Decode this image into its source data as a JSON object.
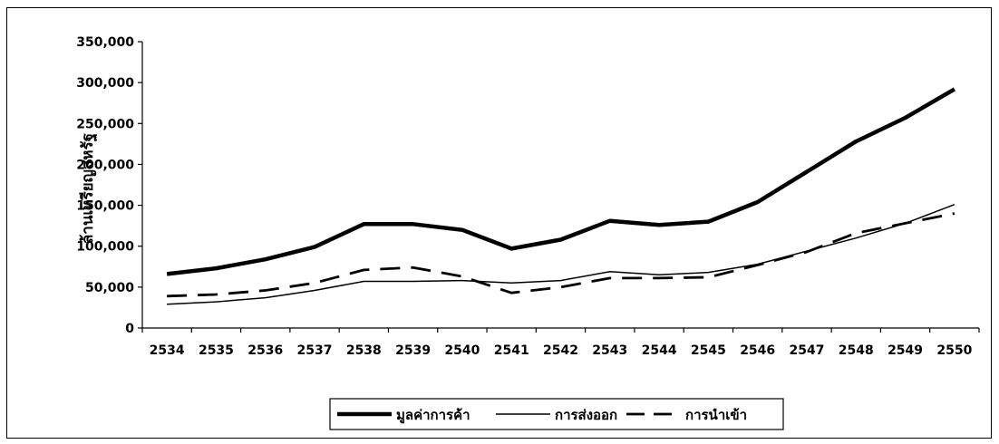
{
  "chart_data": {
    "type": "line",
    "title": "",
    "xlabel": "",
    "ylabel": "ล้านเหรียญสหรัฐ",
    "ylim": [
      0,
      350000
    ],
    "yticks": [
      0,
      50000,
      100000,
      150000,
      200000,
      250000,
      300000,
      350000
    ],
    "ytick_labels": [
      "0",
      "50,000",
      "100,000",
      "150,000",
      "200,000",
      "250,000",
      "300,000",
      "350,000"
    ],
    "categories": [
      "2534",
      "2535",
      "2536",
      "2537",
      "2538",
      "2539",
      "2540",
      "2541",
      "2542",
      "2543",
      "2544",
      "2545",
      "2546",
      "2547",
      "2548",
      "2549",
      "2550"
    ],
    "grid": false,
    "legend_position": "bottom",
    "series": [
      {
        "name": "มูลค่าการค้า",
        "style": "thick-solid",
        "color": "#000000",
        "values": [
          66000,
          73000,
          84000,
          99000,
          127000,
          127000,
          120000,
          97000,
          108000,
          131000,
          126000,
          130000,
          154000,
          191000,
          228000,
          257000,
          292000
        ]
      },
      {
        "name": "การส่งออก",
        "style": "thin-solid",
        "color": "#000000",
        "values": [
          29000,
          32000,
          37000,
          46000,
          57000,
          57000,
          58000,
          55000,
          58000,
          69000,
          65000,
          68000,
          78000,
          94000,
          110000,
          128000,
          151000
        ]
      },
      {
        "name": "การนำเข้า",
        "style": "dashed",
        "color": "#000000",
        "values": [
          39000,
          41000,
          46000,
          55000,
          71000,
          74000,
          63000,
          43000,
          50000,
          61000,
          61000,
          62000,
          77000,
          93000,
          116000,
          128000,
          140000
        ]
      }
    ]
  }
}
